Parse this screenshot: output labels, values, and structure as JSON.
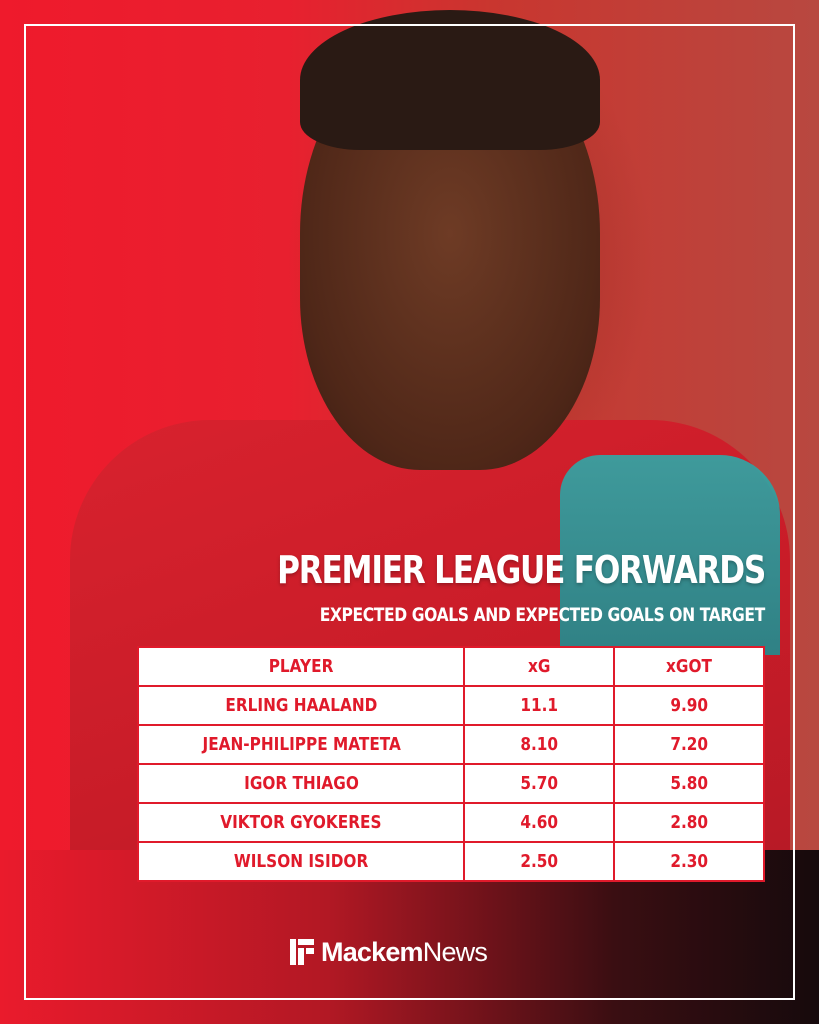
{
  "title": "PREMIER LEAGUE FORWARDS",
  "subtitle": "EXPECTED GOALS AND EXPECTED GOALS ON TARGET",
  "table": {
    "headers": {
      "player": "PLAYER",
      "xg": "xG",
      "xgot": "xGOT"
    },
    "rows": [
      {
        "player": "ERLING HAALAND",
        "xg": "11.1",
        "xgot": "9.90"
      },
      {
        "player": "JEAN-PHILIPPE MATETA",
        "xg": "8.10",
        "xgot": "7.20"
      },
      {
        "player": "IGOR THIAGO",
        "xg": "5.70",
        "xgot": "5.80"
      },
      {
        "player": "VIKTOR GYOKERES",
        "xg": "4.60",
        "xgot": "2.80"
      },
      {
        "player": "WILSON ISIDOR",
        "xg": "2.50",
        "xgot": "2.30"
      }
    ]
  },
  "brand": {
    "bold": "Mackem",
    "light": "News"
  },
  "colors": {
    "accent": "#e01a2b",
    "text_light": "#ffffff"
  }
}
